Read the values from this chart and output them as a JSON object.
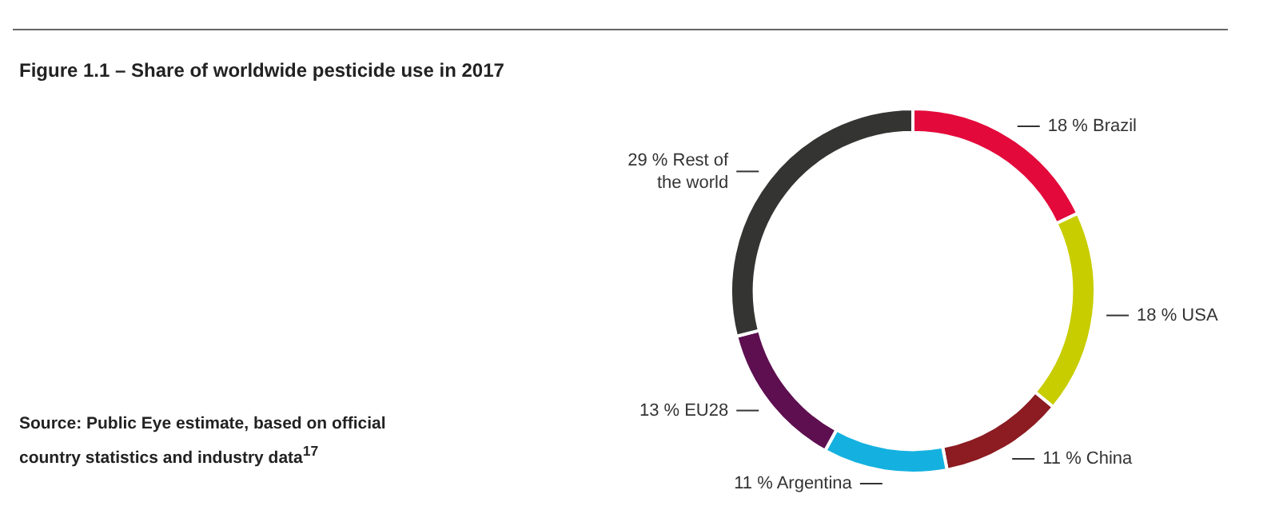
{
  "chart_data": {
    "type": "donut",
    "title": "Figure 1.1 – Share of worldwide pesticide use in 2017",
    "categories": [
      "Brazil",
      "USA",
      "China",
      "Argentina",
      "EU28",
      "Rest of the world"
    ],
    "values": [
      18,
      18,
      11,
      11,
      13,
      29
    ],
    "value_labels": [
      "18 %",
      "18 %",
      "11 %",
      "11 %",
      "13 %",
      "29 %"
    ],
    "colors": [
      "#e3093b",
      "#c8cd00",
      "#8c1b22",
      "#14b1e0",
      "#5d0f50",
      "#343433"
    ],
    "annotations": [
      "Source: Public Eye estimate, based on official country statistics and industry data$^{17}$"
    ]
  }
}
